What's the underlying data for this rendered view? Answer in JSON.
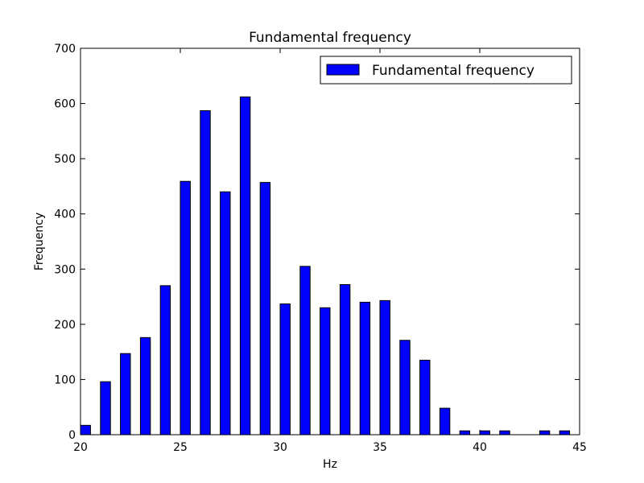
{
  "chart_data": {
    "type": "bar",
    "title": "Fundamental frequency",
    "xlabel": "Hz",
    "ylabel": "Frequency",
    "xlim": [
      20,
      45
    ],
    "ylim": [
      0,
      700
    ],
    "xticks": [
      "20",
      "25",
      "30",
      "35",
      "40",
      "45"
    ],
    "yticks": [
      "0",
      "100",
      "200",
      "300",
      "400",
      "500",
      "600",
      "700"
    ],
    "bin_width": 1,
    "bar_fraction": 0.5,
    "colors": {
      "bar": "#0000ff",
      "edge": "#000000"
    },
    "legend": {
      "label": "Fundamental frequency",
      "position": "top-right"
    },
    "series": [
      {
        "name": "Fundamental frequency",
        "x": [
          20,
          21,
          22,
          23,
          24,
          25,
          26,
          27,
          28,
          29,
          30,
          31,
          32,
          33,
          34,
          35,
          36,
          37,
          38,
          39,
          40,
          41,
          42,
          43,
          44
        ],
        "values": [
          17,
          96,
          147,
          176,
          270,
          459,
          587,
          440,
          612,
          457,
          237,
          305,
          230,
          272,
          240,
          243,
          171,
          135,
          48,
          7,
          7,
          7,
          0,
          7,
          7
        ]
      }
    ]
  }
}
